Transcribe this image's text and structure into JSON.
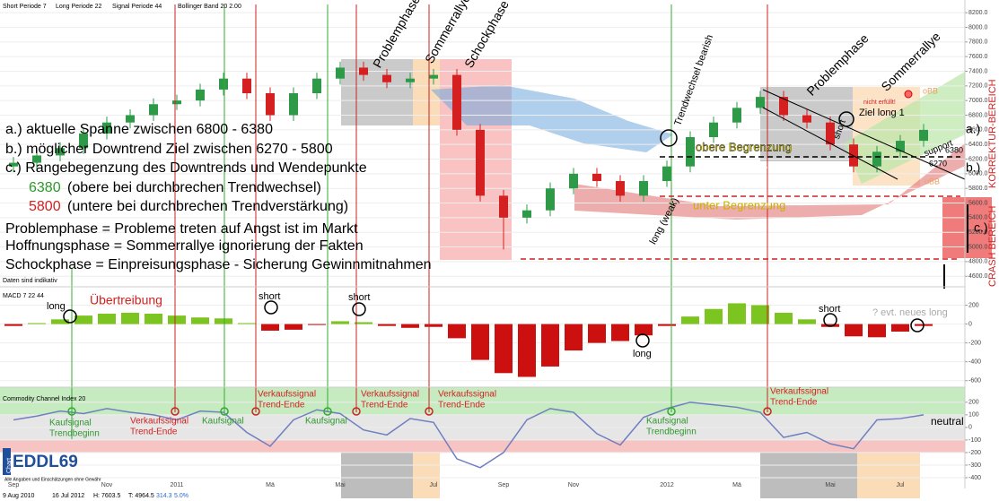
{
  "header": {
    "items": [
      "Short Periode 7",
      "Long Periode 22",
      "Signal Periode 44",
      "Bollinger Band 20 2.00"
    ],
    "note": "Daten sind indikativ"
  },
  "notes": {
    "a": "a.) aktuelle  Spanne zwischen 6800 - 6380",
    "b": "b.) möglicher Downtrend Ziel zwischen 6270 - 5800",
    "c": "c.) Rangebegenzung des Downtrends und Wendepunkte",
    "v1": "6380",
    "t1": "(obere bei durchbrechen Trendwechsel)",
    "v2": "5800",
    "t2": "(untere bei durchbrechen Trendverstärkung)",
    "p1": "Problemphase = Probleme treten auf Angst ist im Markt",
    "p2": "Hoffnungsphase = Sommerrallye ignorierung der Fakten",
    "p3": "Schockphase = Einpreisungsphase - Sicherung Gewinnmitnahmen"
  },
  "labels": {
    "problem1": "Problemphase",
    "sommer1": "Sommerrallye",
    "schock": "Schockphase",
    "trend": "Trendwechsel bearish",
    "obere": "obere Begrenzung",
    "unter": "unter Begrenzung",
    "support1": "Support",
    "weak": "long (weak)",
    "problem2": "Problemphase",
    "sommer2": "Sommerrallye",
    "nicht": "nicht erfüllt!",
    "ziel": "Ziel long 1",
    "short1": "short",
    "support2": "support",
    "l6380": "6380",
    "l6270": "6270",
    "ra": "a.)",
    "rb": "b.)",
    "rc": "c.)",
    "obb": "oBB",
    "ubb": "uBB",
    "korr": "KORREKTUR-BEREICH",
    "crash": "CRASH BEREICH"
  },
  "macd_labels": {
    "ueber": "Übertreibung",
    "long1": "long",
    "short1": "short",
    "short2": "short",
    "long2": "long",
    "short3": "short",
    "neu": "? evt. neues long"
  },
  "cci_labels": {
    "k1": "Kaufsignal",
    "k1b": "Trendbeginn",
    "v1": "Verkaufssignal",
    "v1b": "Trend-Ende",
    "k2": "Kaufsignal",
    "vv2": "Verkaufssignal",
    "vv2b": "Trend-Ende",
    "k3": "Kaufsignal",
    "v3": "Verkaufssignal",
    "v3b": "Trend-Ende",
    "v4": "Verkaufssignal",
    "v4b": "Trend-Ende",
    "k4": "Kaufsignal",
    "k4b": "Trendbeginn",
    "v5": "Verkaufssignal",
    "v5b": "Trend-Ende",
    "neutral": "neutral"
  },
  "logo": {
    "small": "Chart",
    "name": "EDDL69",
    "disclaimer": "Alle Angaben und Einschätzungen ohne Gewähr"
  },
  "footer": {
    "from": "9 Aug 2010",
    "to": "16 Jul 2012",
    "high": "H: 7603.5",
    "low": "T: 4964.5",
    "change": "314.3",
    "pct": "5.0%"
  },
  "chart_data": [
    {
      "type": "candlestick",
      "categories": [
        "Sep",
        null,
        null,
        null,
        "Nov",
        null,
        null,
        "2011",
        null,
        null,
        null,
        "Mä",
        null,
        null,
        "Mai",
        null,
        null,
        null,
        "Jul",
        null,
        null,
        "Sep",
        null,
        null,
        "Nov",
        null,
        null,
        null,
        "2012",
        null,
        null,
        "Mä",
        null,
        null,
        null,
        "Mai",
        null,
        null,
        "Jul",
        null
      ],
      "open": [
        6100,
        6150,
        6250,
        6350,
        6550,
        6700,
        6800,
        6950,
        7000,
        7150,
        7300,
        7100,
        6800,
        7100,
        7300,
        7450,
        7350,
        7250,
        7300,
        7350,
        6600,
        5700,
        5400,
        5500,
        5800,
        6000,
        5900,
        5700,
        5900,
        6100,
        6500,
        6700,
        6900,
        7050,
        6800,
        6700,
        6400,
        6100,
        6300,
        6450
      ],
      "high": [
        6230,
        6330,
        6430,
        6630,
        6780,
        6880,
        7030,
        7080,
        7230,
        7380,
        7380,
        7180,
        7180,
        7380,
        7530,
        7530,
        7430,
        7380,
        7430,
        7430,
        6680,
        5780,
        5580,
        5880,
        6080,
        6080,
        5980,
        5980,
        6180,
        6580,
        6780,
        6980,
        7130,
        7130,
        6880,
        6780,
        6480,
        6380,
        6530,
        6680
      ],
      "low": [
        6020,
        6070,
        6170,
        6270,
        6470,
        6620,
        6720,
        6870,
        6920,
        7070,
        7020,
        6720,
        6720,
        7020,
        7220,
        7270,
        7170,
        7170,
        7220,
        6520,
        5620,
        4965,
        5320,
        5420,
        5720,
        5820,
        5620,
        5620,
        5820,
        6020,
        6420,
        6620,
        6820,
        6720,
        6620,
        6320,
        6020,
        6020,
        6220,
        6370
      ],
      "close": [
        6150,
        6250,
        6350,
        6550,
        6700,
        6800,
        6950,
        7000,
        7150,
        7300,
        7100,
        6800,
        7100,
        7300,
        7450,
        7350,
        7250,
        7300,
        7350,
        6600,
        5700,
        5400,
        5500,
        5800,
        6000,
        5900,
        5700,
        5900,
        6100,
        6500,
        6700,
        6900,
        7050,
        6800,
        6700,
        6400,
        6100,
        6300,
        6450,
        6600
      ],
      "up_color": "#2e9a48",
      "down_color": "#d42020",
      "ylim": [
        4480,
        8300
      ],
      "yticks": [
        {
          "value": 8200,
          "label": "8200.0"
        },
        {
          "value": 8000,
          "label": "8000.0"
        },
        {
          "value": 7800,
          "label": "7800.0"
        },
        {
          "value": 7600,
          "label": "7600.0"
        },
        {
          "value": 7400,
          "label": "7400.0"
        },
        {
          "value": 7200,
          "label": "7200.0"
        },
        {
          "value": 7000,
          "label": "7000.0"
        },
        {
          "value": 6800,
          "label": "6800.0"
        },
        {
          "value": 6600,
          "label": "6600.0"
        },
        {
          "value": 6400,
          "label": "6400.0"
        },
        {
          "value": 6200,
          "label": "6200.0"
        },
        {
          "value": 6000,
          "label": "6000.0"
        },
        {
          "value": 5800,
          "label": "5800.0"
        },
        {
          "value": 5600,
          "label": "5600.0"
        },
        {
          "value": 5400,
          "label": "5400.0"
        },
        {
          "value": 5200,
          "label": "5200.0"
        },
        {
          "value": 5000,
          "label": "5000.0"
        },
        {
          "value": 4800,
          "label": "4800.0"
        },
        {
          "value": 4600,
          "label": "4600.0"
        }
      ]
    },
    {
      "type": "bar",
      "title": "MACD 7 22 44",
      "values": [
        -20,
        10,
        50,
        90,
        110,
        120,
        110,
        90,
        70,
        60,
        10,
        -70,
        -60,
        -10,
        30,
        20,
        -20,
        -40,
        -30,
        -150,
        -380,
        -520,
        -560,
        -450,
        -280,
        -200,
        -180,
        -120,
        -20,
        80,
        160,
        220,
        200,
        120,
        50,
        -30,
        -130,
        -140,
        -80,
        -20
      ],
      "pos_color": "#7cc520",
      "neg_color": "#cc1010",
      "ylim": [
        -650,
        300
      ],
      "yticks": [
        200,
        0,
        -200,
        -400,
        -600
      ]
    },
    {
      "type": "line",
      "title": "Commodity Channel Index 20",
      "values": [
        60,
        90,
        130,
        110,
        150,
        120,
        100,
        60,
        130,
        120,
        -40,
        -150,
        60,
        140,
        110,
        -20,
        -60,
        70,
        40,
        -250,
        -320,
        -200,
        60,
        150,
        120,
        -50,
        -140,
        80,
        150,
        200,
        180,
        160,
        120,
        -80,
        -40,
        -130,
        -170,
        60,
        70,
        100
      ],
      "color": "#6f7fbf",
      "ylim": [
        -450,
        320
      ],
      "yticks": [
        200,
        100,
        0,
        -100,
        -200,
        -300,
        -400
      ]
    }
  ]
}
